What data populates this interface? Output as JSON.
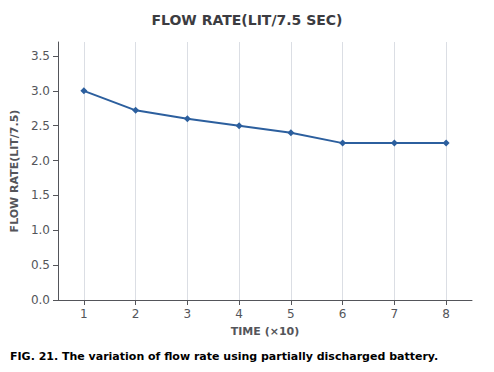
{
  "chart_data": {
    "type": "line",
    "title": "FLOW RATE(LIT/7.5 SEC)",
    "xlabel": "TIME (×10)",
    "ylabel": "FLOW RATE(LIT/7.5)",
    "caption": "FIG. 21. The variation of flow rate using partially discharged battery.",
    "x": [
      1,
      2,
      3,
      4,
      5,
      6,
      7,
      8
    ],
    "values": [
      3.0,
      2.72,
      2.6,
      2.5,
      2.4,
      2.25,
      2.25,
      2.25
    ],
    "xlim": [
      0.5,
      8.5
    ],
    "ylim": [
      0,
      3.7
    ],
    "xticks": [
      1,
      2,
      3,
      4,
      5,
      6,
      7,
      8
    ],
    "yticks": [
      {
        "value": 0,
        "label": "0.0"
      },
      {
        "value": 0.5,
        "label": "0.5"
      },
      {
        "value": 1,
        "label": "1.0"
      },
      {
        "value": 1.5,
        "label": "1.5"
      },
      {
        "value": 2,
        "label": "2.0"
      },
      {
        "value": 2.5,
        "label": "2.5"
      },
      {
        "value": 3,
        "label": "3.0"
      },
      {
        "value": 3.5,
        "label": "3.5"
      }
    ],
    "color": "#2c5f9e",
    "marker": "diamond",
    "grid": "x"
  }
}
